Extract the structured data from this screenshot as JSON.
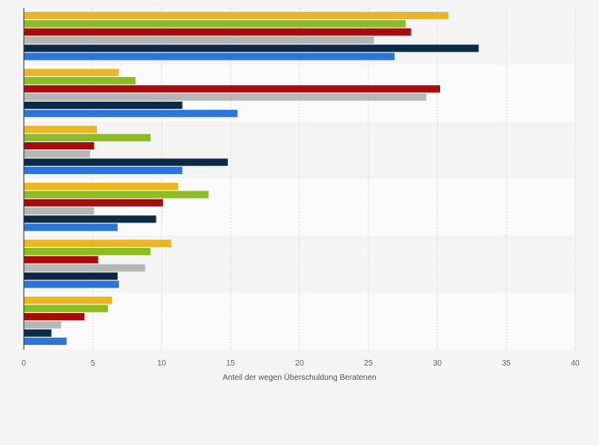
{
  "chart_data": {
    "type": "bar",
    "orientation": "horizontal",
    "xlabel": "Anteil der wegen Überschuldung Beratenen",
    "xlim": [
      0,
      40
    ],
    "xticks": [
      "0",
      "5",
      "10",
      "15",
      "20",
      "25",
      "30",
      "35",
      "40"
    ],
    "grid": true,
    "category_count": 6,
    "series": [
      {
        "color": "#ebb624",
        "values": [
          30.8,
          6.9,
          5.3,
          11.2,
          10.7,
          6.4
        ]
      },
      {
        "color": "#8bbc21",
        "values": [
          27.7,
          8.1,
          9.2,
          13.4,
          9.2,
          6.1
        ]
      },
      {
        "color": "#a80b0b",
        "values": [
          28.1,
          30.2,
          5.1,
          10.1,
          5.4,
          4.4
        ]
      },
      {
        "color": "#b6b6b6",
        "values": [
          25.4,
          29.2,
          4.8,
          5.1,
          8.8,
          2.7
        ]
      },
      {
        "color": "#0b2a45",
        "values": [
          33.0,
          11.5,
          14.8,
          9.6,
          6.8,
          2.0
        ]
      },
      {
        "color": "#2c76d9",
        "values": [
          26.9,
          15.5,
          11.5,
          6.8,
          6.9,
          3.1
        ]
      }
    ]
  }
}
